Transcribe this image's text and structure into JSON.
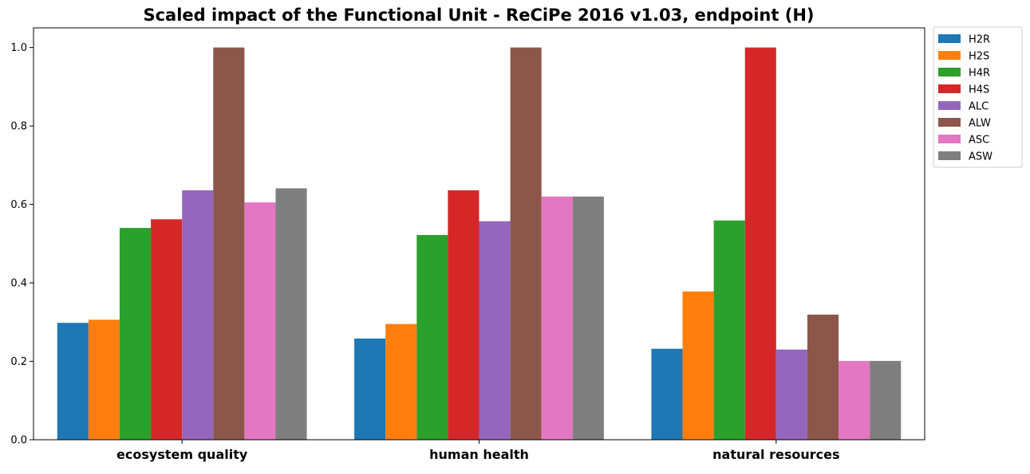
{
  "chart_data": {
    "type": "bar",
    "title": "Scaled impact of the Functional Unit - ReCiPe 2016 v1.03, endpoint (H)",
    "xlabel": "",
    "ylabel": "",
    "categories": [
      "ecosystem quality",
      "human health",
      "natural resources"
    ],
    "ylim": [
      0,
      1.05
    ],
    "yticks": [
      0.0,
      0.2,
      0.4,
      0.6,
      0.8,
      1.0
    ],
    "ytick_labels": [
      "0.0",
      "0.2",
      "0.4",
      "0.6",
      "0.8",
      "1.0"
    ],
    "grid": false,
    "legend_position": "outside-top-right",
    "series": [
      {
        "name": "H2R",
        "color": "#1f77b4",
        "values": [
          0.298,
          0.258,
          0.232
        ]
      },
      {
        "name": "H2S",
        "color": "#ff7f0e",
        "values": [
          0.306,
          0.295,
          0.378
        ]
      },
      {
        "name": "H4R",
        "color": "#2ca02c",
        "values": [
          0.54,
          0.522,
          0.559
        ]
      },
      {
        "name": "H4S",
        "color": "#d62728",
        "values": [
          0.562,
          0.636,
          1.0
        ]
      },
      {
        "name": "ALC",
        "color": "#9467bd",
        "values": [
          0.636,
          0.557,
          0.23
        ]
      },
      {
        "name": "ALW",
        "color": "#8c564b",
        "values": [
          1.0,
          1.0,
          0.319
        ]
      },
      {
        "name": "ASC",
        "color": "#e377c2",
        "values": [
          0.605,
          0.62,
          0.201
        ]
      },
      {
        "name": "ASW",
        "color": "#7f7f7f",
        "values": [
          0.641,
          0.62,
          0.201
        ]
      }
    ]
  }
}
